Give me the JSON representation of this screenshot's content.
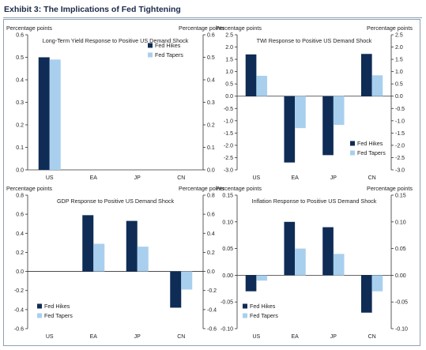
{
  "page": {
    "exhibit_title": "Exhibit 3: The Implications of Fed Tightening"
  },
  "colors": {
    "fed_hikes": "#0e2c55",
    "fed_tapers": "#a9cfee",
    "axis": "#333333",
    "text": "#222222"
  },
  "chart_data": [
    {
      "type": "bar",
      "title": "Long-Term Yield Response to Positive US Demand Shock",
      "ylabel_left": "Percentage points",
      "ylabel_right": "Percentage points",
      "categories": [
        "US",
        "EA",
        "JP",
        "CN"
      ],
      "series": [
        {
          "name": "Fed Hikes",
          "values": [
            0.5,
            null,
            null,
            null
          ]
        },
        {
          "name": "Fed Tapers",
          "values": [
            0.49,
            null,
            null,
            null
          ]
        }
      ],
      "ylim": [
        0.0,
        0.6
      ],
      "yticks": [
        0.0,
        0.1,
        0.2,
        0.3,
        0.4,
        0.5,
        0.6
      ],
      "ytick_labels": [
        "0.0",
        "0.1",
        "0.2",
        "0.3",
        "0.4",
        "0.5",
        "0.6"
      ],
      "legend_position": "top-right"
    },
    {
      "type": "bar",
      "title": "TWI Response to Positive US Demand Shock",
      "ylabel_left": "Percentage points",
      "ylabel_right": "Percentage points",
      "categories": [
        "US",
        "EA",
        "JP",
        "CN"
      ],
      "series": [
        {
          "name": "Fed Hikes",
          "values": [
            1.7,
            -2.7,
            -2.4,
            1.72
          ]
        },
        {
          "name": "Fed Tapers",
          "values": [
            0.83,
            -1.3,
            -1.17,
            0.85
          ]
        }
      ],
      "ylim": [
        -3.0,
        2.5
      ],
      "yticks": [
        -3.0,
        -2.5,
        -2.0,
        -1.5,
        -1.0,
        -0.5,
        0.0,
        0.5,
        1.0,
        1.5,
        2.0,
        2.5
      ],
      "ytick_labels": [
        "-3.0",
        "-2.5",
        "-2.0",
        "-1.5",
        "-1.0",
        "-0.5",
        "0.0",
        "0.5",
        "1.0",
        "1.5",
        "2.0",
        "2.5"
      ],
      "legend_position": "bottom-right"
    },
    {
      "type": "bar",
      "title": "GDP Response to Positive US Demand Shock",
      "ylabel_left": "Percentage points",
      "ylabel_right": "Percentage points",
      "categories": [
        "US",
        "EA",
        "JP",
        "CN"
      ],
      "series": [
        {
          "name": "Fed Hikes",
          "values": [
            null,
            0.59,
            0.53,
            -0.38
          ]
        },
        {
          "name": "Fed Tapers",
          "values": [
            null,
            0.29,
            0.26,
            -0.19
          ]
        }
      ],
      "ylim": [
        -0.6,
        0.8
      ],
      "yticks": [
        -0.6,
        -0.4,
        -0.2,
        0.0,
        0.2,
        0.4,
        0.6,
        0.8
      ],
      "ytick_labels": [
        "-0.6",
        "-0.4",
        "-0.2",
        "0.0",
        "0.2",
        "0.4",
        "0.6",
        "0.8"
      ],
      "legend_position": "bottom-left"
    },
    {
      "type": "bar",
      "title": "Inflation Response to Positive US Demand Shock",
      "ylabel_left": "Percentage points",
      "ylabel_right": "Percentage points",
      "categories": [
        "US",
        "EA",
        "JP",
        "CN"
      ],
      "series": [
        {
          "name": "Fed Hikes",
          "values": [
            -0.03,
            0.1,
            0.09,
            -0.07
          ]
        },
        {
          "name": "Fed Tapers",
          "values": [
            -0.01,
            0.05,
            0.04,
            -0.03
          ]
        }
      ],
      "ylim": [
        -0.1,
        0.15
      ],
      "yticks": [
        -0.1,
        -0.05,
        0.0,
        0.05,
        0.1,
        0.15
      ],
      "ytick_labels": [
        "-0.10",
        "-0.05",
        "0.00",
        "0.05",
        "0.10",
        "0.15"
      ],
      "legend_position": "bottom-left"
    }
  ]
}
